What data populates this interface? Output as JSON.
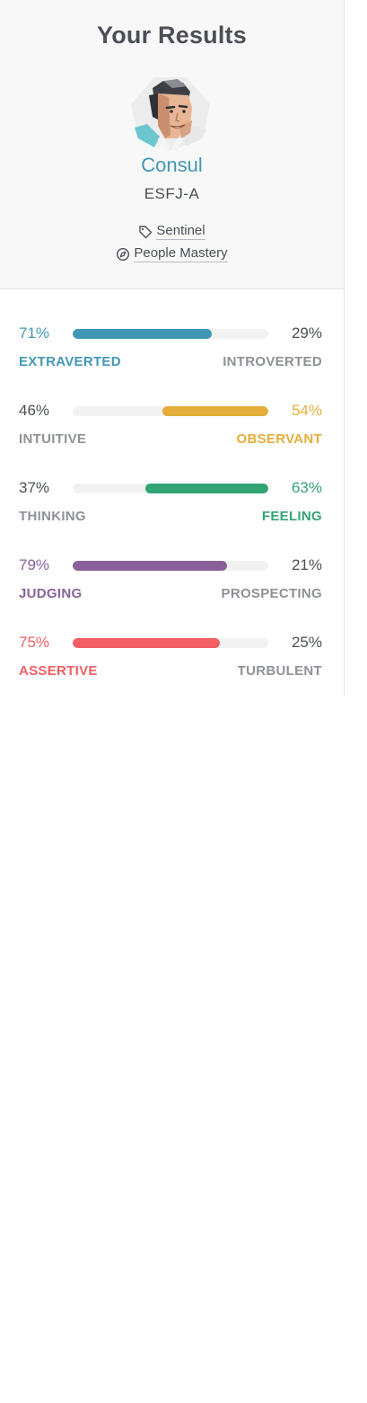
{
  "header": {
    "title": "Your Results",
    "type_name": "Consul",
    "type_code": "ESFJ-A",
    "role_label": "Sentinel",
    "strategy_label": "People Mastery",
    "accent": "#4298b4"
  },
  "traits": [
    {
      "left_pct": "71%",
      "right_pct": "29%",
      "left_label": "EXTRAVERTED",
      "right_label": "INTROVERTED",
      "value": 71,
      "dominant": "left",
      "color": "#4298b4"
    },
    {
      "left_pct": "46%",
      "right_pct": "54%",
      "left_label": "INTUITIVE",
      "right_label": "OBSERVANT",
      "value": 54,
      "dominant": "right",
      "color": "#e4ae3a"
    },
    {
      "left_pct": "37%",
      "right_pct": "63%",
      "left_label": "THINKING",
      "right_label": "FEELING",
      "value": 63,
      "dominant": "right",
      "color": "#33a474"
    },
    {
      "left_pct": "79%",
      "right_pct": "21%",
      "left_label": "JUDGING",
      "right_label": "PROSPECTING",
      "value": 79,
      "dominant": "left",
      "color": "#88619a"
    },
    {
      "left_pct": "75%",
      "right_pct": "25%",
      "left_label": "ASSERTIVE",
      "right_label": "TURBULENT",
      "value": 75,
      "dominant": "left",
      "color": "#f25e62"
    }
  ]
}
